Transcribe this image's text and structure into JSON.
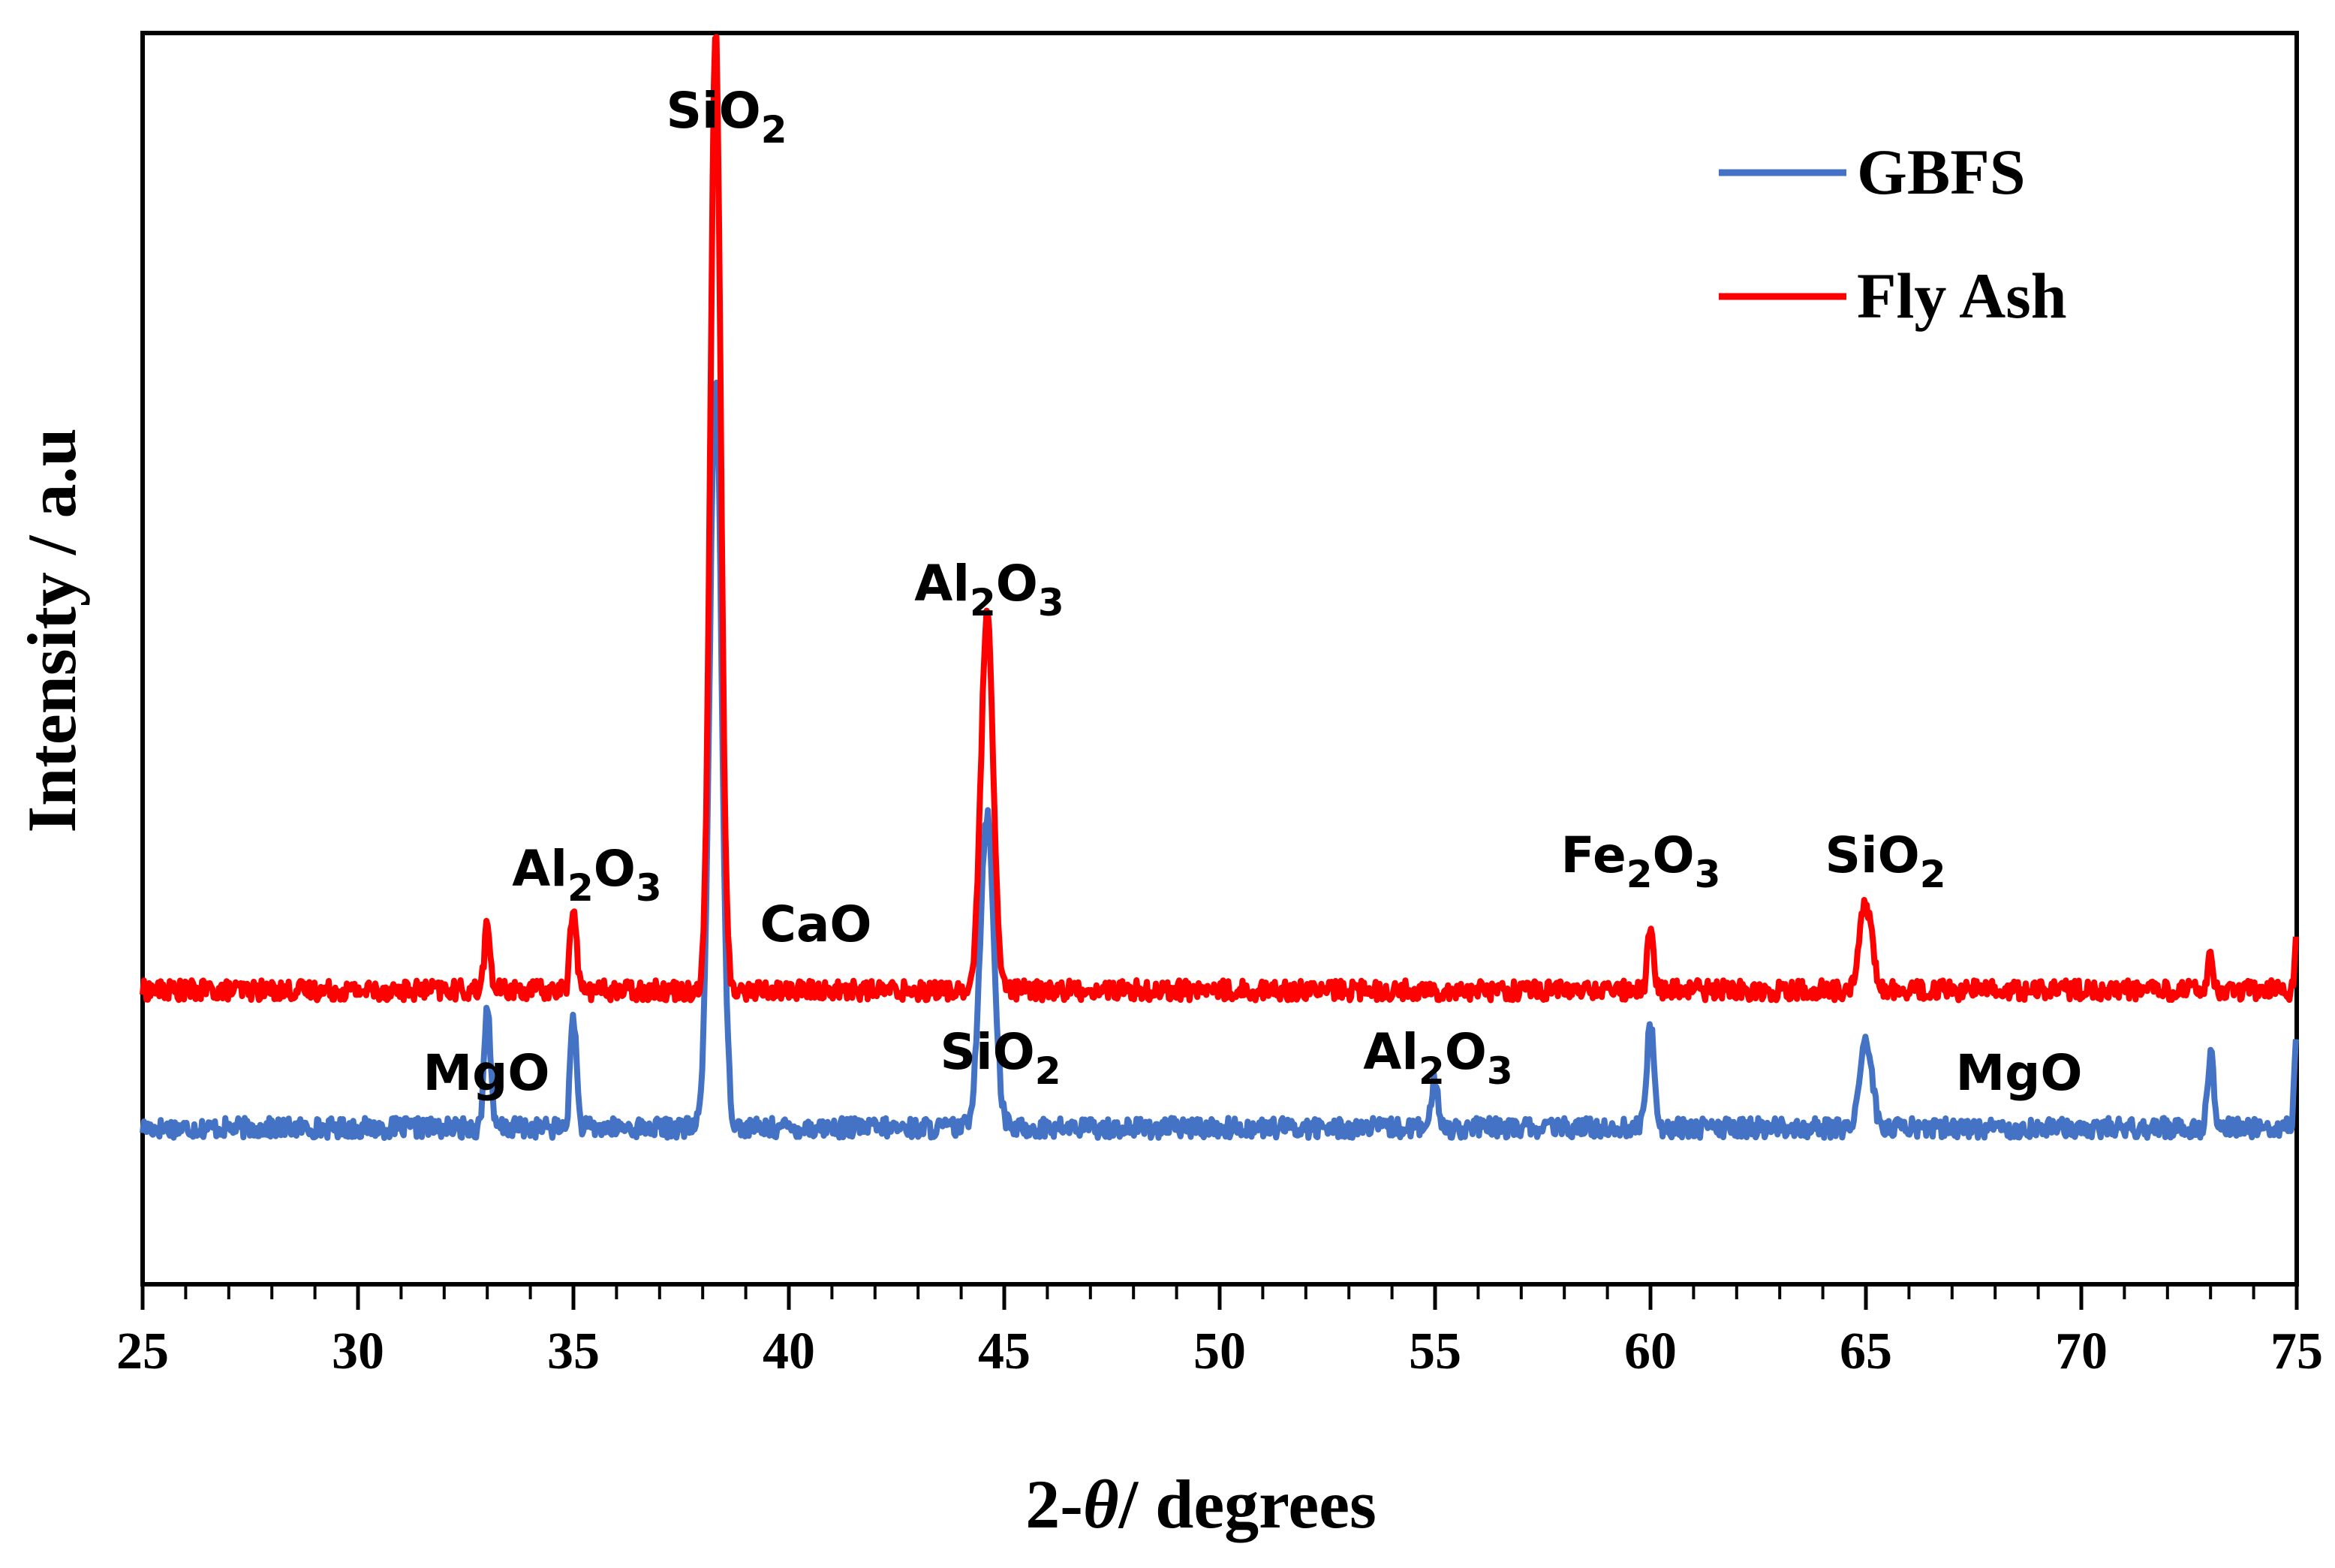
{
  "chart_data": {
    "type": "line",
    "title": "",
    "xlabel_prefix": "2-",
    "xlabel_theta": "θ",
    "xlabel_suffix": "/ degrees",
    "ylabel": "Intensity / a.u",
    "xlim": [
      25,
      75
    ],
    "ylim": [
      0,
      100
    ],
    "x_ticks": [
      "25",
      "30",
      "35",
      "40",
      "45",
      "50",
      "55",
      "60",
      "65",
      "70",
      "75"
    ],
    "legend_position": "top-right",
    "series": [
      {
        "name": "GBFS",
        "color": "#4472c4",
        "baseline": 12.5,
        "peaks": [
          {
            "x": 33.0,
            "height": 10,
            "width": 0.07
          },
          {
            "x": 35.0,
            "height": 9,
            "width": 0.07
          },
          {
            "x": 38.3,
            "height": 60,
            "width": 0.14
          },
          {
            "x": 44.6,
            "height": 25,
            "width": 0.16
          },
          {
            "x": 55.0,
            "height": 4,
            "width": 0.07
          },
          {
            "x": 60.0,
            "height": 8,
            "width": 0.09
          },
          {
            "x": 65.0,
            "height": 7,
            "width": 0.14
          },
          {
            "x": 73.0,
            "height": 6,
            "width": 0.07
          },
          {
            "x": 75.0,
            "height": 7,
            "width": 0.05
          }
        ]
      },
      {
        "name": "Fly Ash",
        "color": "#ff0000",
        "baseline": 23.5,
        "peaks": [
          {
            "x": 33.0,
            "height": 5,
            "width": 0.07
          },
          {
            "x": 35.0,
            "height": 7,
            "width": 0.07
          },
          {
            "x": 38.3,
            "height": 76.5,
            "width": 0.12
          },
          {
            "x": 44.6,
            "height": 30,
            "width": 0.14
          },
          {
            "x": 60.0,
            "height": 5,
            "width": 0.07
          },
          {
            "x": 65.0,
            "height": 7,
            "width": 0.14
          },
          {
            "x": 73.0,
            "height": 2.5,
            "width": 0.06
          },
          {
            "x": 75.0,
            "height": 4,
            "width": 0.05
          }
        ]
      }
    ],
    "annotations": [
      {
        "base": "SiO",
        "sub": "2",
        "tail": ""
      },
      {
        "base": "Al",
        "sub": "2",
        "tail": "O",
        "sub2": "3"
      },
      {
        "base": "CaO",
        "sub": "",
        "tail": ""
      },
      {
        "base": "Al",
        "sub": "2",
        "tail": "O",
        "sub2": "3"
      },
      {
        "base": "Fe",
        "sub": "2",
        "tail": "O",
        "sub2": "3"
      },
      {
        "base": "SiO",
        "sub": "2",
        "tail": ""
      },
      {
        "base": "MgO",
        "sub": "",
        "tail": ""
      },
      {
        "base": "SiO",
        "sub": "2",
        "tail": ""
      },
      {
        "base": "Al",
        "sub": "2",
        "tail": "O",
        "sub2": "3"
      },
      {
        "base": "MgO",
        "sub": "",
        "tail": ""
      }
    ]
  }
}
